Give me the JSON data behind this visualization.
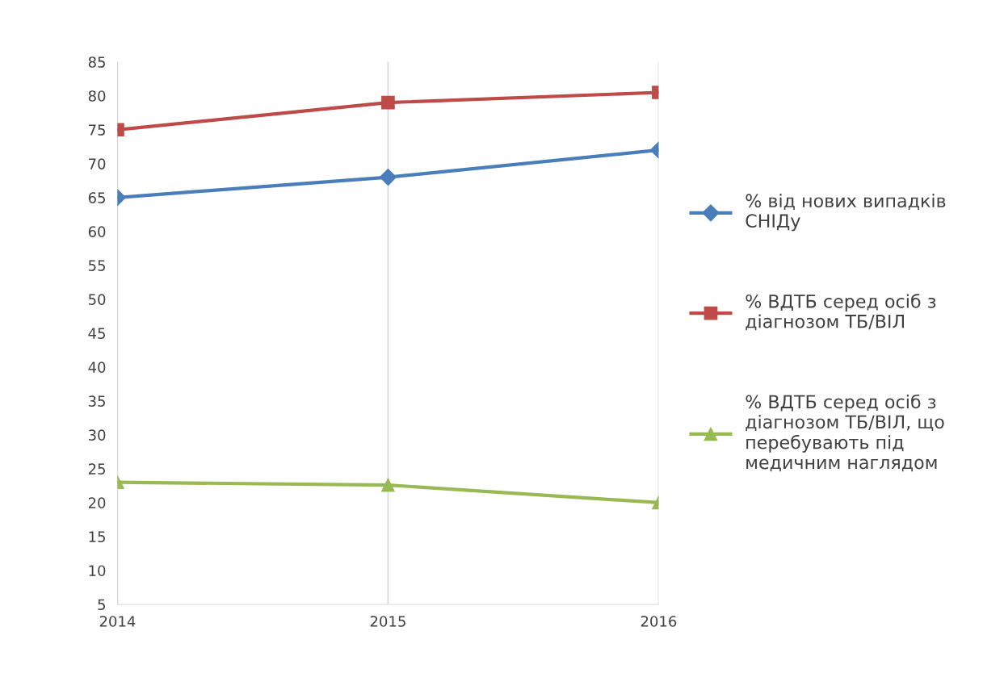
{
  "chart_data": {
    "type": "line",
    "x": [
      2014,
      2015,
      2016
    ],
    "xlim": [
      2014,
      2016
    ],
    "xticks": [
      2014,
      2015,
      2016
    ],
    "ylim": [
      5,
      85
    ],
    "yticks": [
      5,
      10,
      15,
      20,
      25,
      30,
      35,
      40,
      45,
      50,
      55,
      60,
      65,
      70,
      75,
      80,
      85
    ],
    "series": [
      {
        "name": "% від нових випадків СНІДу",
        "color": "#4a7ebb",
        "marker": "diamond",
        "values": [
          65,
          68,
          72
        ]
      },
      {
        "name": "% ВДТБ серед осіб з діагнозом ТБ/ВІЛ",
        "color": "#be4b48",
        "marker": "square",
        "values": [
          75,
          79,
          80.5
        ]
      },
      {
        "name": "% ВДТБ серед осіб з діагнозом ТБ/ВІЛ, що перебувають під медичним наглядом",
        "color": "#98b954",
        "marker": "triangle",
        "values": [
          23,
          22.6,
          20
        ]
      }
    ],
    "grid": "x",
    "legend": "right",
    "line_style": "solid"
  }
}
